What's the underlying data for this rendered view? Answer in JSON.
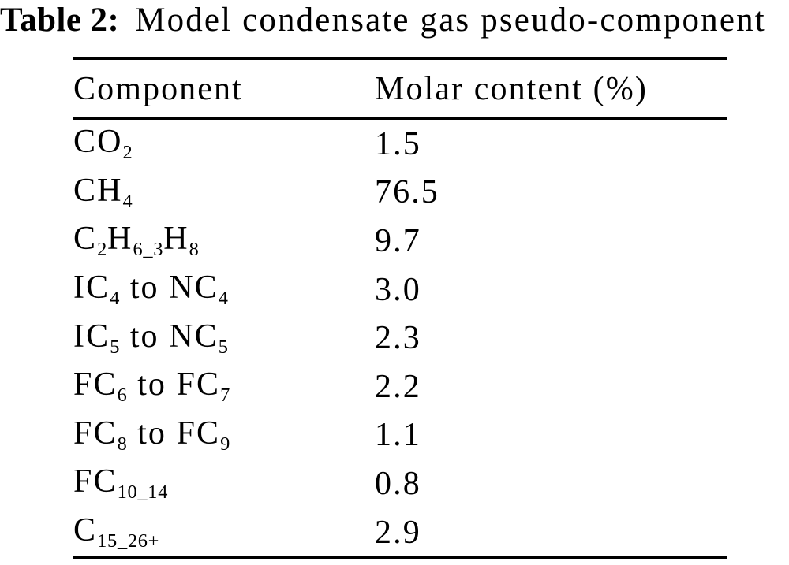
{
  "caption": {
    "label": "Table 2:",
    "text": "Model condensate gas pseudo-component"
  },
  "table": {
    "headers": [
      "Component",
      "Molar content (%)"
    ],
    "rows": [
      {
        "component": [
          {
            "t": "CO"
          },
          {
            "sub": "2"
          }
        ],
        "value": "1.5"
      },
      {
        "component": [
          {
            "t": "CH"
          },
          {
            "sub": "4"
          }
        ],
        "value": "76.5"
      },
      {
        "component": [
          {
            "t": "C"
          },
          {
            "sub": "2"
          },
          {
            "t": "H"
          },
          {
            "sub": "6_3"
          },
          {
            "t": "H"
          },
          {
            "sub": "8"
          }
        ],
        "value": "9.7"
      },
      {
        "component": [
          {
            "t": "IC"
          },
          {
            "sub": "4"
          },
          {
            "t": " to NC"
          },
          {
            "sub": "4"
          }
        ],
        "value": "3.0"
      },
      {
        "component": [
          {
            "t": "IC"
          },
          {
            "sub": "5"
          },
          {
            "t": " to NC"
          },
          {
            "sub": "5"
          }
        ],
        "value": "2.3"
      },
      {
        "component": [
          {
            "t": "FC"
          },
          {
            "sub": "6"
          },
          {
            "t": " to FC"
          },
          {
            "sub": "7"
          }
        ],
        "value": "2.2"
      },
      {
        "component": [
          {
            "t": "FC"
          },
          {
            "sub": "8"
          },
          {
            "t": " to FC"
          },
          {
            "sub": "9"
          }
        ],
        "value": "1.1"
      },
      {
        "component": [
          {
            "t": "FC"
          },
          {
            "sub": "10_14"
          }
        ],
        "value": "0.8"
      },
      {
        "component": [
          {
            "t": "C"
          },
          {
            "sub": "15_26+"
          }
        ],
        "value": "2.9"
      }
    ]
  },
  "colors": {
    "background": "#ffffff",
    "text": "#000000",
    "rule": "#000000"
  }
}
